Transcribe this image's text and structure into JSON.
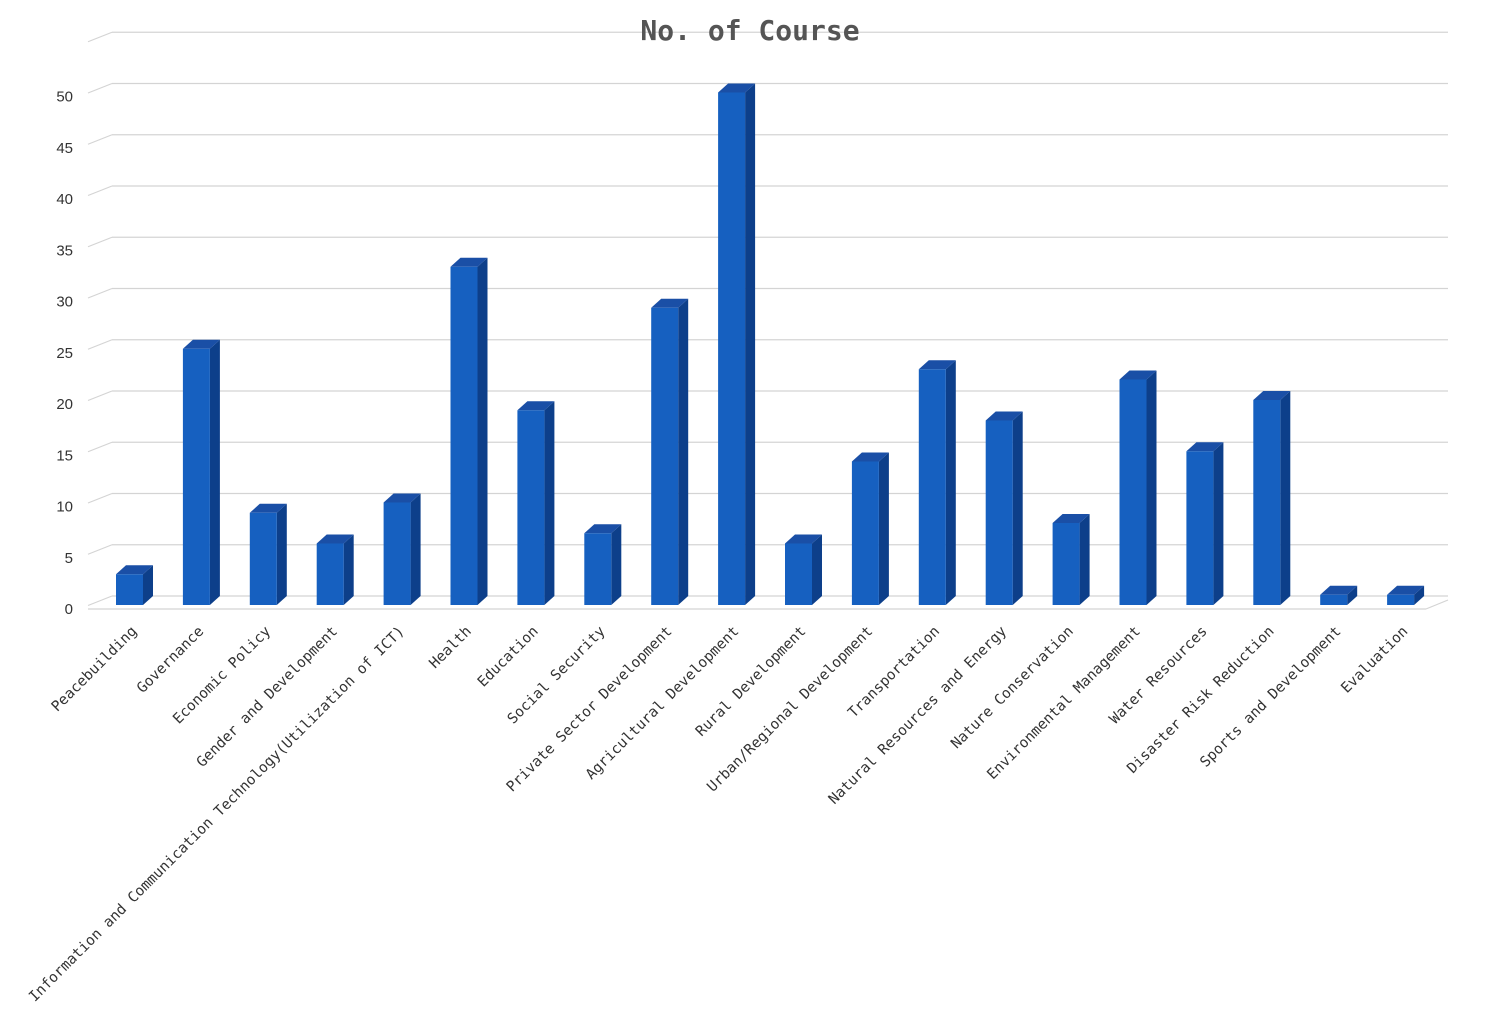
{
  "chart_data": {
    "type": "bar",
    "title": "No. of Course",
    "xlabel": "",
    "ylabel": "",
    "ylim": [
      0,
      50
    ],
    "yticks": [
      0,
      5,
      10,
      15,
      20,
      25,
      30,
      35,
      40,
      45,
      50
    ],
    "grid": true,
    "legend": "none",
    "bar_color": "#1660C0",
    "bar_side_color": "#0D3F8A",
    "bar_top_color": "#1A4FA6",
    "categories": [
      "Peacebuilding",
      "Governance",
      "Economic Policy",
      "Gender and Development",
      "Information and Communication Technology(Utilization of ICT)",
      "Health",
      "Education",
      "Social Security",
      "Private Sector Development",
      "Agricultural Development",
      "Rural Development",
      "Urban/Regional Development",
      "Transportation",
      "Natural Resources and Energy",
      "Nature Conservation",
      "Environmental Management",
      "Water Resources",
      "Disaster Risk Reduction",
      "Sports and Development",
      "Evaluation"
    ],
    "series": [
      {
        "values": [
          3,
          25,
          9,
          6,
          10,
          33,
          19,
          7,
          29,
          50,
          6,
          14,
          23,
          18,
          8,
          22,
          15,
          20,
          1,
          1
        ]
      }
    ]
  }
}
